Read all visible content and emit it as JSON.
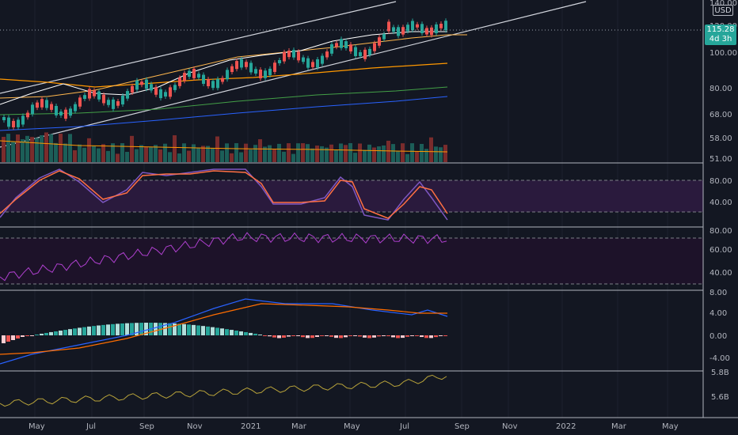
{
  "price_axis": {
    "currency": "USD",
    "current_price": "115.28",
    "countdown": "4d 3h",
    "labels": [
      "140.00",
      "120.00",
      "100.00",
      "80.00",
      "68.00",
      "58.00",
      "51.00"
    ]
  },
  "stoch_axis": {
    "labels": [
      "80.00",
      "40.00"
    ]
  },
  "rsi_axis": {
    "labels": [
      "80.00",
      "60.00",
      "40.00"
    ]
  },
  "macd_axis": {
    "labels": [
      "8.00",
      "4.00",
      "0.00",
      "-4.00"
    ]
  },
  "extra_axis": {
    "labels": [
      "5.8B",
      "5.6B"
    ]
  },
  "time_axis": {
    "labels": [
      "May",
      "Jul",
      "Sep",
      "Nov",
      "2021",
      "Mar",
      "May",
      "Jul",
      "Sep",
      "Nov",
      "2022",
      "Mar",
      "May"
    ]
  },
  "colors": {
    "background": "#131722",
    "up": "#26a69a",
    "down": "#ef5350",
    "stoch_band": "#2a1a3d",
    "rsi_line": "#b040d0",
    "macd_line": "#2962ff",
    "signal_line": "#ff6d00",
    "obv_line": "#b8a33a"
  }
}
